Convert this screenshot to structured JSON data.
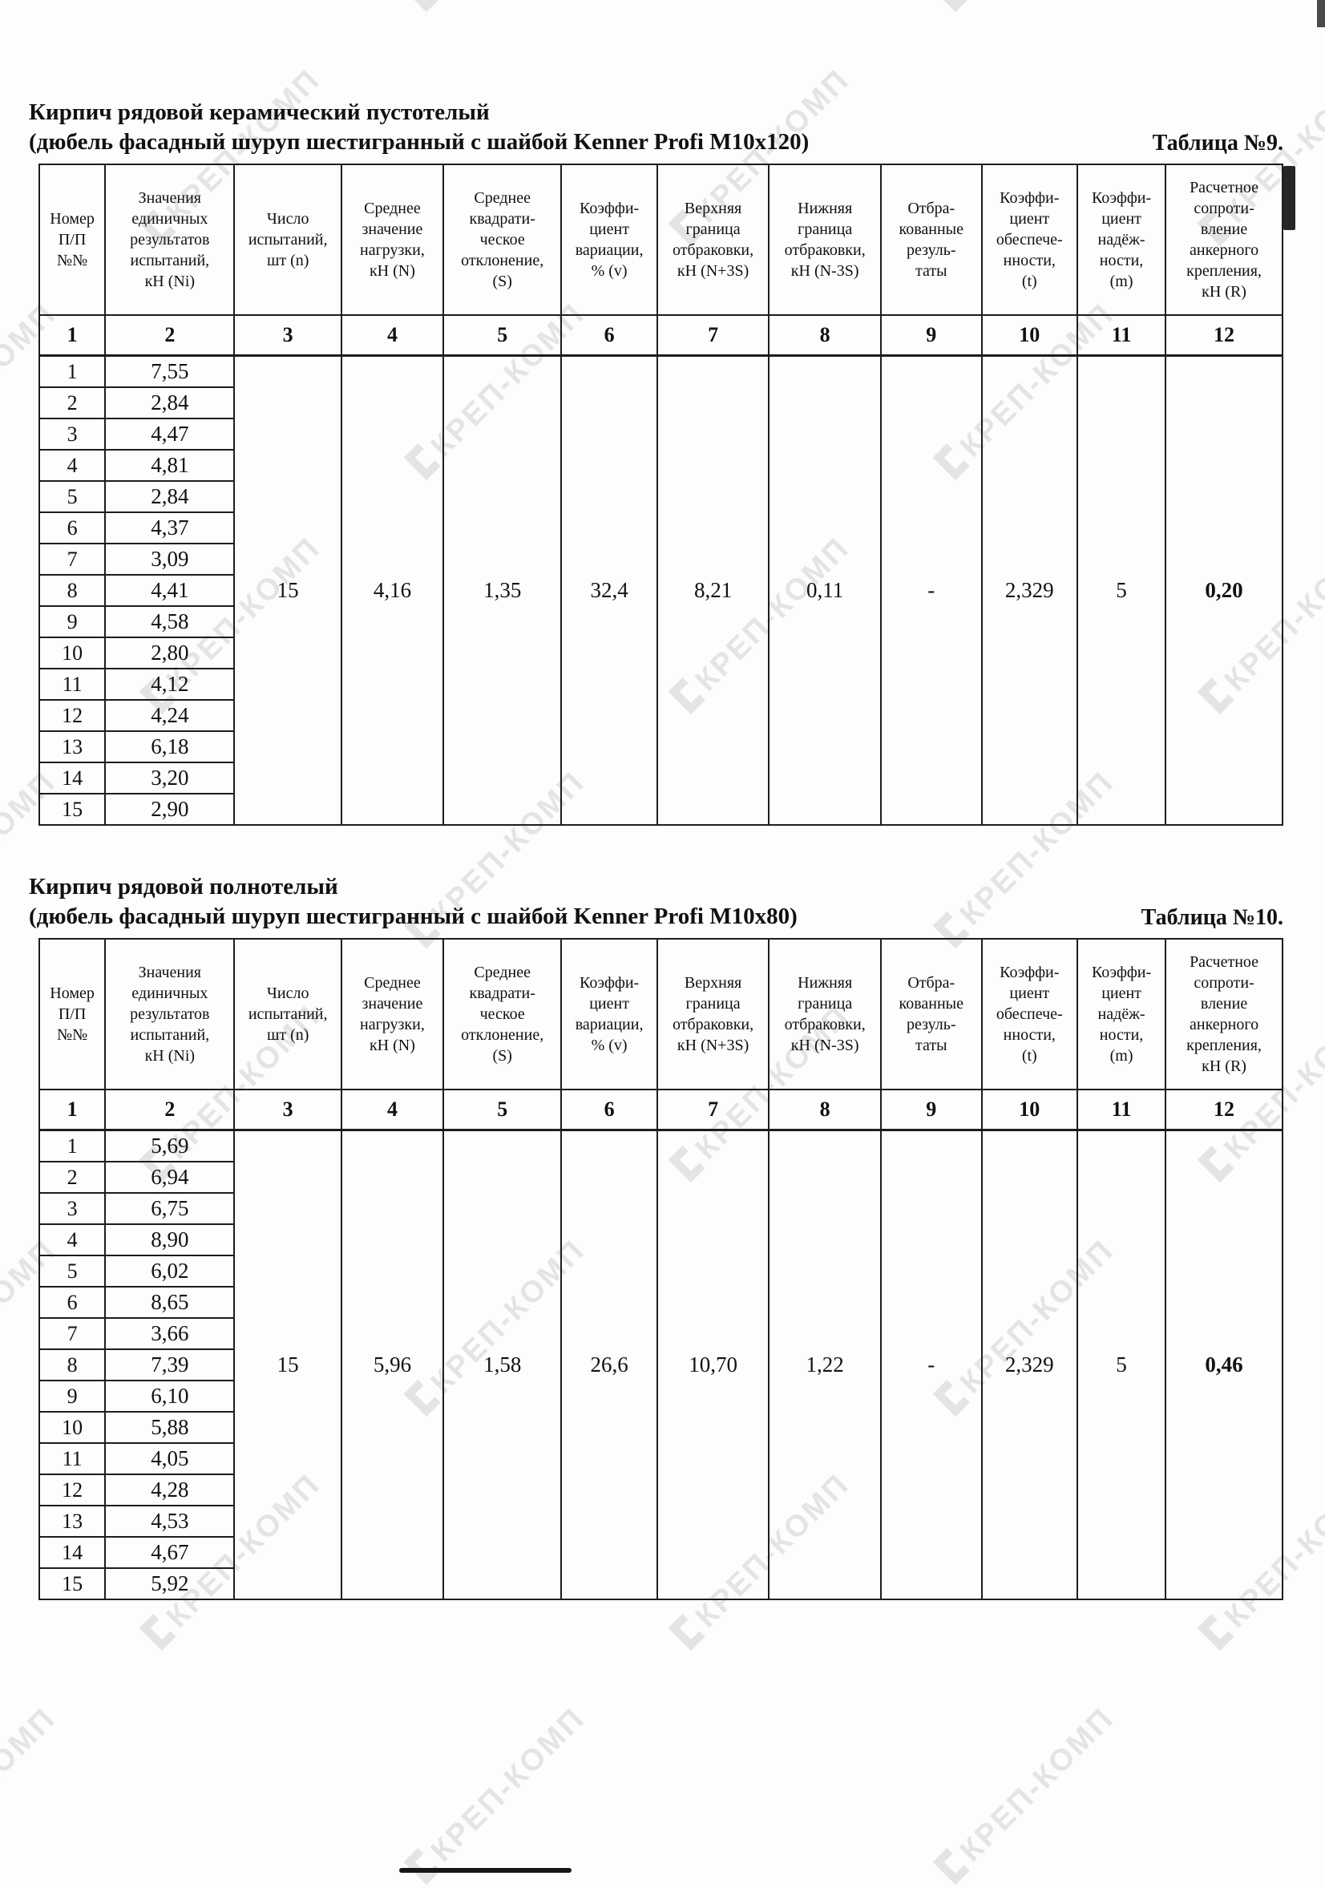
{
  "watermark": {
    "text": "КРЕП-КОМП",
    "color": "#e4e4e4"
  },
  "headers": [
    "Номер\nП/П\n№№",
    "Значения\nединичных\nрезультатов\nиспытаний,\nкН (Ni)",
    "Число\nиспытаний,\nшт (n)",
    "Среднее\nзначение\nнагрузки,\nкН (N)",
    "Среднее\nквадрати-\nческое\nотклонение,\n(S)",
    "Коэффи-\nциент\nвариации,\n% (v)",
    "Верхняя\nграница\nотбраковки,\nкН (N+3S)",
    "Нижняя\nграница\nотбраковки,\nкН (N-3S)",
    "Отбра-\nкованные\nрезуль-\nтаты",
    "Коэффи-\nциент\nобеспече-\nнности,\n(t)",
    "Коэффи-\nциент\nнадёж-\nности,\n(m)",
    "Расчетное\nсопроти-\nвление\nанкерного\nкрепления,\nкН (R)"
  ],
  "tables": [
    {
      "title_line1": "Кирпич рядовой керамический пустотелый",
      "title_line2": "(дюбель фасадный шуруп шестигранный с шайбой Kenner Profi M10x120)",
      "table_label": "Таблица №9.",
      "column_numbers": [
        "1",
        "2",
        "3",
        "4",
        "5",
        "6",
        "7",
        "8",
        "9",
        "10",
        "11",
        "12"
      ],
      "rows": [
        [
          "1",
          "7,55"
        ],
        [
          "2",
          "2,84"
        ],
        [
          "3",
          "4,47"
        ],
        [
          "4",
          "4,81"
        ],
        [
          "5",
          "2,84"
        ],
        [
          "6",
          "4,37"
        ],
        [
          "7",
          "3,09"
        ],
        [
          "8",
          "4,41"
        ],
        [
          "9",
          "4,58"
        ],
        [
          "10",
          "2,80"
        ],
        [
          "11",
          "4,12"
        ],
        [
          "12",
          "4,24"
        ],
        [
          "13",
          "6,18"
        ],
        [
          "14",
          "3,20"
        ],
        [
          "15",
          "2,90"
        ]
      ],
      "summary": [
        "15",
        "4,16",
        "1,35",
        "32,4",
        "8,21",
        "0,11",
        "-",
        "2,329",
        "5",
        "0,20"
      ]
    },
    {
      "title_line1": "Кирпич рядовой полнотелый",
      "title_line2": "(дюбель фасадный шуруп шестигранный с шайбой Kenner Profi M10x80)",
      "table_label": "Таблица №10.",
      "column_numbers": [
        "1",
        "2",
        "3",
        "4",
        "5",
        "6",
        "7",
        "8",
        "9",
        "10",
        "11",
        "12"
      ],
      "rows": [
        [
          "1",
          "5,69"
        ],
        [
          "2",
          "6,94"
        ],
        [
          "3",
          "6,75"
        ],
        [
          "4",
          "8,90"
        ],
        [
          "5",
          "6,02"
        ],
        [
          "6",
          "8,65"
        ],
        [
          "7",
          "3,66"
        ],
        [
          "8",
          "7,39"
        ],
        [
          "9",
          "6,10"
        ],
        [
          "10",
          "5,88"
        ],
        [
          "11",
          "4,05"
        ],
        [
          "12",
          "4,28"
        ],
        [
          "13",
          "4,53"
        ],
        [
          "14",
          "4,67"
        ],
        [
          "15",
          "5,92"
        ]
      ],
      "summary": [
        "15",
        "5,96",
        "1,58",
        "26,6",
        "10,70",
        "1,22",
        "-",
        "2,329",
        "5",
        "0,46"
      ]
    }
  ]
}
